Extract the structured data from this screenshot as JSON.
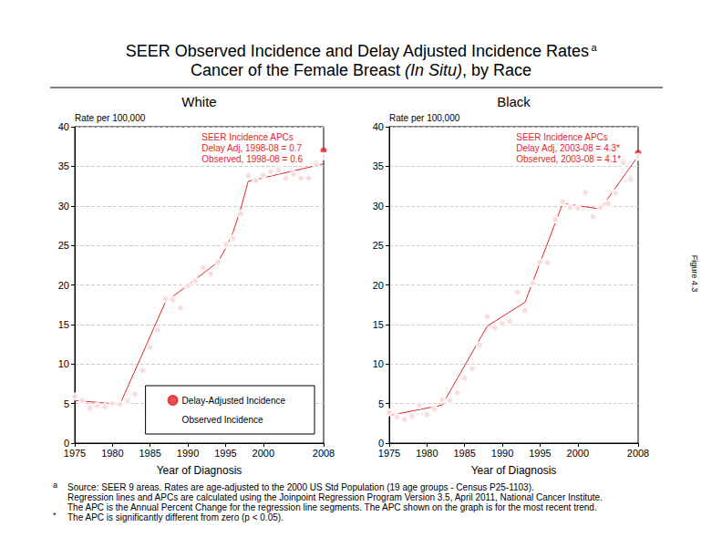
{
  "page": {
    "title": "SEER Observed Incidence and Delay Adjusted Incidence Rates",
    "title_mark": "a",
    "subtitle_parts": [
      {
        "text": "Cancer of the Female Breast "
      },
      {
        "text": "(In Situ)",
        "style": "italic"
      },
      {
        "text": ", by Race"
      }
    ],
    "figure_label": "Figure 4.3",
    "notes": [
      {
        "mark": "a",
        "lines": [
          "Source: SEER 9 areas. Rates are age-adjusted to the 2000 US Std Population (19 age groups - Census P25-1103).",
          "Regression lines and APCs are calculated using the Joinpoint Regression Program Version 3.5, April 2011, National Cancer Institute.",
          "The APC is the Annual Percent Change for the regression line segments. The APC shown on the graph is for the most recent trend."
        ]
      },
      {
        "mark": "*",
        "lines": [
          "The APC is significantly different from zero (p < 0.05)."
        ]
      }
    ]
  },
  "chart_data": [
    {
      "type": "scatter",
      "title": "White",
      "x_label": "Year of Diagnosis",
      "y_label": "Rate per 100,000",
      "xlim": [
        1975,
        2008
      ],
      "xticks": [
        1975,
        1980,
        1985,
        1990,
        1995,
        2000,
        2008
      ],
      "ylim": [
        0,
        40
      ],
      "yticks": [
        0,
        5,
        10,
        15,
        20,
        25,
        30,
        35,
        40
      ],
      "grid": true,
      "legend": "lower right",
      "annotations": [
        "SEER Incidence APCs",
        "Delay Adj, 1998-08 = 0.7",
        "Observed, 1998-08 = 0.6"
      ],
      "series": [
        {
          "name": "Delay-Adjusted Incidence",
          "type": "scatter",
          "marker": "filled_circle",
          "color": "#e2262c",
          "x": [
            1975,
            1976,
            1977,
            1978,
            1979,
            1980,
            1981,
            1982,
            1983,
            1984,
            1985,
            1986,
            1987,
            1988,
            1989,
            1990,
            1991,
            1992,
            1993,
            1994,
            1995,
            1996,
            1997,
            1998,
            1999,
            2000,
            2001,
            2002,
            2003,
            2004,
            2005,
            2006,
            2007,
            2008
          ],
          "values": [
            5.9,
            5.4,
            4.4,
            4.7,
            4.6,
            5.0,
            4.9,
            5.3,
            6.2,
            9.2,
            12.1,
            14.3,
            18.3,
            18.1,
            17.1,
            19.9,
            20.5,
            22.2,
            21.4,
            22.9,
            25.1,
            25.9,
            29.0,
            33.8,
            33.2,
            33.9,
            34.3,
            34.5,
            33.5,
            34.0,
            33.5,
            33.5,
            35.3,
            37.0
          ]
        },
        {
          "name": "Observed Incidence",
          "type": "scatter",
          "marker": "open_circle",
          "color": "#e2262c",
          "x": [
            1975,
            1976,
            1977,
            1978,
            1979,
            1980,
            1981,
            1982,
            1983,
            1984,
            1985,
            1986,
            1987,
            1988,
            1989,
            1990,
            1991,
            1992,
            1993,
            1994,
            1995,
            1996,
            1997,
            1998,
            1999,
            2000,
            2001,
            2002,
            2003,
            2004,
            2005,
            2006,
            2007,
            2008
          ],
          "values": [
            5.9,
            5.4,
            4.4,
            4.7,
            4.6,
            5.0,
            4.9,
            5.3,
            6.2,
            9.2,
            12.1,
            14.3,
            18.3,
            18.1,
            17.1,
            19.9,
            20.5,
            22.2,
            21.4,
            22.9,
            25.1,
            25.9,
            29.0,
            33.8,
            33.2,
            33.9,
            34.3,
            34.5,
            33.5,
            34.0,
            33.5,
            33.5,
            35.2,
            36.3
          ]
        },
        {
          "type": "line",
          "line_style": "solid",
          "color": "#e2262c",
          "x": [
            1975,
            1981,
            1987,
            1994,
            1995,
            1996,
            1997,
            1998,
            2008
          ],
          "values": [
            5.4,
            4.9,
            17.8,
            22.9,
            24.6,
            26.7,
            29.6,
            33.1,
            35.3
          ]
        }
      ]
    },
    {
      "type": "scatter",
      "title": "Black",
      "x_label": "Year of Diagnosis",
      "y_label": "Rate per 100,000",
      "xlim": [
        1975,
        2008
      ],
      "xticks": [
        1975,
        1980,
        1985,
        1990,
        1995,
        2000,
        2008
      ],
      "ylim": [
        0,
        40
      ],
      "yticks": [
        0,
        5,
        10,
        15,
        20,
        25,
        30,
        35,
        40
      ],
      "grid": true,
      "annotations": [
        "SEER Incidence APCs",
        "Delay Adj, 2003-08 = 4.3*",
        "Observed, 2003-08 = 4.1*"
      ],
      "series": [
        {
          "name": "Delay-Adjusted Incidence",
          "type": "scatter",
          "marker": "filled_circle",
          "color": "#e2262c",
          "x": [
            1975,
            1976,
            1977,
            1978,
            1979,
            1980,
            1981,
            1982,
            1983,
            1984,
            1985,
            1986,
            1987,
            1988,
            1989,
            1990,
            1991,
            1992,
            1993,
            1994,
            1995,
            1996,
            1997,
            1998,
            1999,
            2000,
            2001,
            2002,
            2003,
            2004,
            2005,
            2006,
            2007,
            2008
          ],
          "values": [
            3.9,
            3.3,
            3.0,
            3.4,
            4.8,
            3.6,
            4.3,
            5.5,
            5.4,
            6.4,
            8.2,
            9.4,
            12.4,
            16.0,
            14.6,
            15.1,
            15.4,
            19.1,
            16.8,
            20.2,
            22.9,
            22.8,
            28.3,
            30.5,
            29.8,
            29.7,
            31.7,
            28.6,
            29.8,
            30.3,
            31.6,
            35.5,
            33.4,
            36.7
          ]
        },
        {
          "name": "Observed Incidence",
          "type": "scatter",
          "marker": "open_circle",
          "color": "#e2262c",
          "x": [
            1975,
            1976,
            1977,
            1978,
            1979,
            1980,
            1981,
            1982,
            1983,
            1984,
            1985,
            1986,
            1987,
            1988,
            1989,
            1990,
            1991,
            1992,
            1993,
            1994,
            1995,
            1996,
            1997,
            1998,
            1999,
            2000,
            2001,
            2002,
            2003,
            2004,
            2005,
            2006,
            2007,
            2008
          ],
          "values": [
            3.9,
            3.3,
            3.0,
            3.4,
            4.8,
            3.6,
            4.3,
            5.5,
            5.4,
            6.4,
            8.2,
            9.4,
            12.4,
            16.0,
            14.6,
            15.1,
            15.4,
            19.1,
            16.8,
            20.2,
            22.9,
            22.8,
            28.3,
            30.5,
            29.8,
            29.7,
            31.7,
            28.6,
            29.8,
            30.3,
            31.6,
            35.4,
            33.3,
            36.2
          ]
        },
        {
          "type": "line",
          "line_style": "solid",
          "color": "#e2262c",
          "x": [
            1975,
            1982,
            1988,
            1993,
            1998,
            2003,
            2008
          ],
          "values": [
            3.5,
            4.8,
            14.8,
            17.8,
            30.3,
            29.6,
            36.3
          ]
        }
      ]
    }
  ]
}
